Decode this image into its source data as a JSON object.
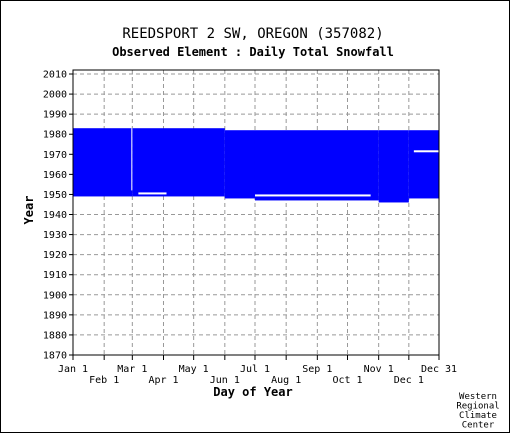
{
  "title": "REEDSPORT 2 SW, OREGON   (357082)",
  "subtitle": "Observed Element : Daily Total Snowfall",
  "credit": [
    "Western",
    "Regional",
    "Climate",
    "Center"
  ],
  "colors": {
    "data": "#0000ff",
    "grid": "#999999",
    "background": "#ffffff",
    "axis": "#000000"
  },
  "chart_data": {
    "type": "heatmap",
    "title": "REEDSPORT 2 SW, OREGON   (357082)",
    "subtitle": "Observed Element : Daily Total Snowfall",
    "xlabel": "Day of Year",
    "ylabel": "Year",
    "xlim": [
      1,
      365
    ],
    "ylim": [
      1870,
      2012
    ],
    "grid": true,
    "x_ticks_top_row": [
      "Jan 1",
      "Mar 1",
      "May 1",
      "Jul 1",
      "Sep 1",
      "Nov 1",
      "Dec 31"
    ],
    "x_ticks_bottom_row": [
      "Feb 1",
      "Apr 1",
      "Jun 1",
      "Aug 1",
      "Oct 1",
      "Dec 1"
    ],
    "x_tick_days": {
      "Jan 1": 1,
      "Feb 1": 32,
      "Mar 1": 60,
      "Apr 1": 91,
      "May 1": 121,
      "Jun 1": 152,
      "Jul 1": 182,
      "Aug 1": 213,
      "Sep 1": 244,
      "Oct 1": 274,
      "Nov 1": 305,
      "Dec 1": 335,
      "Dec 31": 365
    },
    "y_ticks": [
      1870,
      1880,
      1890,
      1900,
      1910,
      1920,
      1930,
      1940,
      1950,
      1960,
      1970,
      1980,
      1990,
      2000,
      2010
    ],
    "series": [
      {
        "segments": [
          {
            "day_start": 1,
            "day_end": 60,
            "year_start": 1949,
            "year_end": 1983
          },
          {
            "day_start": 60,
            "day_end": 152,
            "year_start": 1949,
            "year_end": 1983
          },
          {
            "day_start": 152,
            "day_end": 182,
            "year_start": 1948,
            "year_end": 1982
          },
          {
            "day_start": 182,
            "day_end": 305,
            "year_start": 1947,
            "year_end": 1982
          },
          {
            "day_start": 305,
            "day_end": 335,
            "year_start": 1946,
            "year_end": 1982
          },
          {
            "day_start": 335,
            "day_end": 365,
            "year_start": 1948,
            "year_end": 1982
          }
        ],
        "gaps": [
          {
            "day_start": 59,
            "day_end": 60,
            "year_start": 1952,
            "year_end": 1983
          },
          {
            "day_start": 66,
            "day_end": 94,
            "year_start": 1950,
            "year_end": 1951
          },
          {
            "day_start": 182,
            "day_end": 297,
            "year_start": 1949,
            "year_end": 1950
          },
          {
            "day_start": 340,
            "day_end": 365,
            "year_start": 1971,
            "year_end": 1972
          }
        ]
      }
    ]
  }
}
